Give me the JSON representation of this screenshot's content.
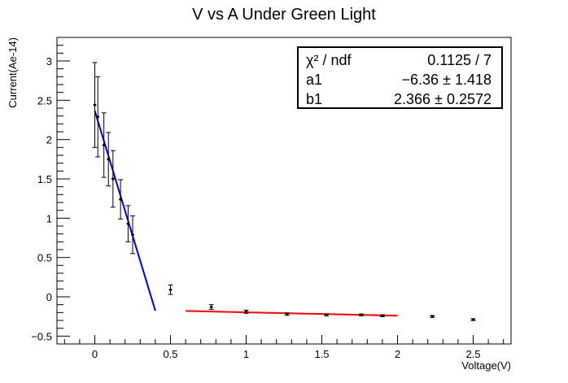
{
  "chart_data": {
    "type": "scatter",
    "title": "V vs A Under Green Light",
    "xlabel": "Voltage(V)",
    "ylabel": "Current(Ae-14)",
    "xlim": [
      -0.25,
      2.75
    ],
    "ylim": [
      -0.6,
      3.3
    ],
    "x_ticks": [
      0,
      0.5,
      1,
      1.5,
      2,
      2.5
    ],
    "x_tick_labels": [
      "0",
      "0.5",
      "1",
      "1.5",
      "2",
      "2.5"
    ],
    "y_ticks": [
      -0.5,
      0,
      0.5,
      1,
      1.5,
      2,
      2.5,
      3
    ],
    "y_tick_labels": [
      "−0.5",
      "0",
      "0.5",
      "1",
      "1.5",
      "2",
      "2.5",
      "3"
    ],
    "grid": false,
    "points": [
      {
        "x": 0.0,
        "y": 2.44,
        "err": 0.54
      },
      {
        "x": 0.02,
        "y": 2.29,
        "err": 0.51
      },
      {
        "x": 0.06,
        "y": 1.93,
        "err": 0.41
      },
      {
        "x": 0.09,
        "y": 1.75,
        "err": 0.34
      },
      {
        "x": 0.12,
        "y": 1.5,
        "err": 0.36
      },
      {
        "x": 0.17,
        "y": 1.24,
        "err": 0.25
      },
      {
        "x": 0.22,
        "y": 0.93,
        "err": 0.23
      },
      {
        "x": 0.25,
        "y": 0.79,
        "err": 0.24
      },
      {
        "x": 0.5,
        "y": 0.09,
        "err": 0.06
      },
      {
        "x": 0.77,
        "y": -0.13,
        "err": 0.03
      },
      {
        "x": 1.0,
        "y": -0.19,
        "err": 0.02
      },
      {
        "x": 1.27,
        "y": -0.22,
        "err": 0.015
      },
      {
        "x": 1.53,
        "y": -0.23,
        "err": 0.012
      },
      {
        "x": 1.76,
        "y": -0.23,
        "err": 0.012
      },
      {
        "x": 1.9,
        "y": -0.24,
        "err": 0.012
      },
      {
        "x": 2.23,
        "y": -0.25,
        "err": 0.012
      },
      {
        "x": 2.5,
        "y": -0.29,
        "err": 0.012
      }
    ],
    "fits": [
      {
        "color": "#0000cc",
        "x": [
          0.0,
          0.4
        ],
        "y": [
          2.366,
          -0.178
        ]
      },
      {
        "color": "#ff0000",
        "x": [
          0.6,
          2.0
        ],
        "y": [
          -0.18,
          -0.24
        ]
      }
    ],
    "stats": {
      "rows": [
        {
          "label": "χ² / ndf",
          "value": "0.1125 / 7"
        },
        {
          "label": "a1",
          "value": "−6.36 ± 1.418"
        },
        {
          "label": "b1",
          "value": "2.366 ± 0.2572"
        }
      ]
    }
  }
}
